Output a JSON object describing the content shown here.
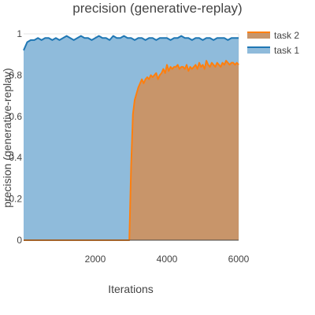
{
  "chart_data": {
    "type": "area",
    "title": "precision (generative-replay)",
    "xlabel": "Iterations",
    "ylabel": "precision (generative-replay)",
    "xlim": [
      0,
      6000
    ],
    "ylim": [
      0,
      1
    ],
    "x_ticks": [
      2000,
      4000,
      6000
    ],
    "y_ticks": [
      0,
      0.2,
      0.4,
      0.6,
      0.8,
      1
    ],
    "x_tick_labels": [
      "2000",
      "4000",
      "6000"
    ],
    "y_tick_labels": [
      "0",
      "0.2",
      "0.4",
      "0.6",
      "0.8",
      "1"
    ],
    "grid": true,
    "legend_position": "top-right",
    "series": [
      {
        "name": "task 2",
        "color": "#ff7f0e",
        "fill": "#c8956a",
        "x": [
          0,
          500,
          1000,
          1500,
          2000,
          2500,
          2950,
          3000,
          3050,
          3100,
          3150,
          3200,
          3250,
          3300,
          3350,
          3400,
          3450,
          3500,
          3550,
          3600,
          3650,
          3700,
          3750,
          3800,
          3850,
          3900,
          3950,
          4000,
          4050,
          4100,
          4150,
          4200,
          4250,
          4300,
          4350,
          4400,
          4450,
          4500,
          4550,
          4600,
          4650,
          4700,
          4750,
          4800,
          4850,
          4900,
          4950,
          5000,
          5050,
          5100,
          5150,
          5200,
          5250,
          5300,
          5350,
          5400,
          5450,
          5500,
          5550,
          5600,
          5650,
          5700,
          5750,
          5800,
          5850,
          5900,
          5950,
          6000
        ],
        "values": [
          0,
          0,
          0,
          0,
          0,
          0,
          0,
          0.36,
          0.61,
          0.68,
          0.71,
          0.74,
          0.76,
          0.78,
          0.76,
          0.78,
          0.79,
          0.78,
          0.8,
          0.79,
          0.8,
          0.81,
          0.78,
          0.8,
          0.81,
          0.83,
          0.81,
          0.85,
          0.82,
          0.84,
          0.83,
          0.84,
          0.84,
          0.85,
          0.83,
          0.84,
          0.84,
          0.83,
          0.85,
          0.82,
          0.84,
          0.83,
          0.84,
          0.85,
          0.83,
          0.86,
          0.84,
          0.85,
          0.83,
          0.87,
          0.85,
          0.84,
          0.86,
          0.85,
          0.84,
          0.86,
          0.85,
          0.84,
          0.86,
          0.85,
          0.87,
          0.86,
          0.85,
          0.86,
          0.86,
          0.85,
          0.86,
          0.85
        ]
      },
      {
        "name": "task 1",
        "color": "#1f77b4",
        "fill": "#8fbbdb",
        "x": [
          0,
          100,
          200,
          300,
          400,
          500,
          600,
          700,
          800,
          900,
          1000,
          1100,
          1200,
          1300,
          1400,
          1500,
          1600,
          1700,
          1800,
          1900,
          2000,
          2100,
          2200,
          2300,
          2400,
          2500,
          2600,
          2700,
          2800,
          2900,
          3000,
          3100,
          3200,
          3300,
          3400,
          3500,
          3600,
          3700,
          3800,
          3900,
          4000,
          4100,
          4200,
          4300,
          4400,
          4500,
          4600,
          4700,
          4800,
          4900,
          5000,
          5100,
          5200,
          5300,
          5400,
          5500,
          5600,
          5700,
          5800,
          5900,
          6000
        ],
        "values": [
          0.92,
          0.96,
          0.97,
          0.97,
          0.98,
          0.97,
          0.98,
          0.98,
          0.97,
          0.98,
          0.97,
          0.98,
          0.99,
          0.98,
          0.97,
          0.98,
          0.99,
          0.98,
          0.98,
          0.97,
          0.98,
          0.99,
          0.98,
          0.98,
          0.97,
          0.99,
          0.98,
          0.98,
          0.99,
          0.98,
          0.98,
          0.97,
          0.98,
          0.98,
          0.97,
          0.98,
          0.98,
          0.97,
          0.98,
          0.98,
          0.98,
          0.97,
          0.98,
          0.98,
          0.99,
          0.98,
          0.98,
          0.97,
          0.98,
          0.98,
          0.97,
          0.98,
          0.98,
          0.97,
          0.98,
          0.98,
          0.98,
          0.97,
          0.98,
          0.98,
          0.98
        ]
      }
    ]
  }
}
